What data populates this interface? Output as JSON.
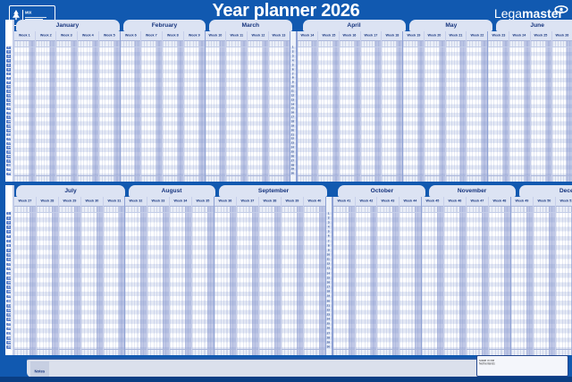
{
  "title": "Year planner 2026",
  "logo": {
    "prefix": "Lega",
    "suffix": "master"
  },
  "fsc": {
    "mix": "MIX"
  },
  "top_half": {
    "divider_after": "March",
    "months": [
      {
        "name": "January",
        "weeks": [
          "Week 1",
          "Week 2",
          "Week 3",
          "Week 4",
          "Week 5"
        ]
      },
      {
        "name": "February",
        "weeks": [
          "Week 6",
          "Week 7",
          "Week 8",
          "Week 9"
        ]
      },
      {
        "name": "March",
        "weeks": [
          "Week 10",
          "Week 11",
          "Week 12",
          "Week 13"
        ]
      },
      {
        "name": "April",
        "weeks": [
          "Week 14",
          "Week 15",
          "Week 16",
          "Week 17",
          "Week 18"
        ]
      },
      {
        "name": "May",
        "weeks": [
          "Week 19",
          "Week 20",
          "Week 21",
          "Week 22"
        ]
      },
      {
        "name": "June",
        "weeks": [
          "Week 23",
          "Week 24",
          "Week 25",
          "Week 26"
        ]
      }
    ]
  },
  "bottom_half": {
    "divider_after": "September",
    "months": [
      {
        "name": "July",
        "weeks": [
          "Week 27",
          "Week 28",
          "Week 29",
          "Week 30",
          "Week 31"
        ]
      },
      {
        "name": "August",
        "weeks": [
          "Week 32",
          "Week 33",
          "Week 34",
          "Week 35"
        ]
      },
      {
        "name": "September",
        "weeks": [
          "Week 36",
          "Week 37",
          "Week 38",
          "Week 39",
          "Week 40"
        ]
      },
      {
        "name": "October",
        "weeks": [
          "Week 41",
          "Week 42",
          "Week 43",
          "Week 44"
        ]
      },
      {
        "name": "November",
        "weeks": [
          "Week 45",
          "Week 46",
          "Week 47",
          "Week 48"
        ]
      },
      {
        "name": "December",
        "weeks": [
          "Week 49",
          "Week 50",
          "Week 51",
          "Week 52",
          "Week 53"
        ]
      }
    ]
  },
  "row_numbers": [
    1,
    2,
    3,
    4,
    5,
    6,
    7,
    8,
    9,
    10,
    11,
    12,
    13,
    14,
    15,
    16,
    17,
    18,
    19,
    20,
    21,
    22,
    23,
    24,
    25,
    26,
    27,
    28,
    29,
    30
  ],
  "notes_label": "Notes",
  "imprint": {
    "made_in": "Made in the Netherlands",
    "company": "Legamaster International B.V.",
    "brand_small": "Legamaster",
    "group_line": "part of the edding group",
    "edding": "edding"
  },
  "colors": {
    "page_blue": "#1159b0",
    "panel_light": "#dce3f3",
    "weekend_stripe": "#8292cd",
    "navy_text": "#17357e",
    "edding_red": "#e30613",
    "bottom_band": "#0a3e84"
  }
}
